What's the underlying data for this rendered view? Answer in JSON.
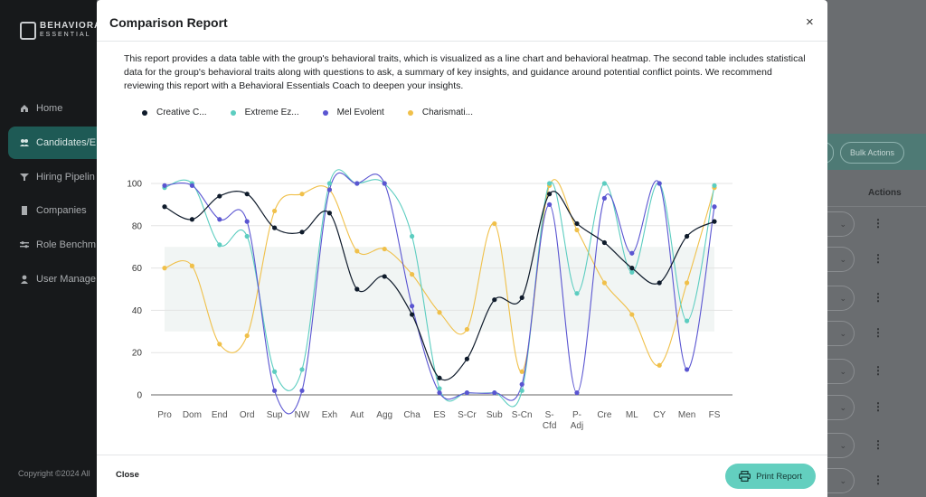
{
  "app": {
    "logo_text": "BEHAVIORA",
    "logo_sub": "ESSENTIAL",
    "sidebar": [
      {
        "label": "Home",
        "icon": "home-icon"
      },
      {
        "label": "Candidates/E",
        "icon": "users-icon"
      },
      {
        "label": "Hiring Pipelin",
        "icon": "filter-icon"
      },
      {
        "label": "Companies",
        "icon": "building-icon"
      },
      {
        "label": "Role Benchm",
        "icon": "sliders-icon"
      },
      {
        "label": "User Manage",
        "icon": "user-icon"
      }
    ],
    "copyright": "Copyright ©2024 All",
    "bulk_actions": "Bulk Actions",
    "actions_header": "Actions"
  },
  "modal": {
    "title": "Comparison Report",
    "close_icon": "×",
    "description": "This report provides a data table with the group's behavioral traits, which is visualized as a line chart and behavioral heatmap. The second table includes statistical data for the group's behavioral traits along with questions to ask, a summary of key insights, and guidance around potential conflict points. We recommend reviewing this report with a Behavioral Essentials Coach to deepen your insights.",
    "close_label": "Close",
    "print_label": "Print Report"
  },
  "chart_data": {
    "type": "line",
    "categories": [
      "Pro",
      "Dom",
      "End",
      "Ord",
      "Sup",
      "NW",
      "Exh",
      "Aut",
      "Agg",
      "Cha",
      "ES",
      "S-Cr",
      "Sub",
      "S-Cn",
      "S-Cfd",
      "P-Adj",
      "Cre",
      "ML",
      "CY",
      "Men",
      "FS"
    ],
    "ylim": [
      0,
      100
    ],
    "yticks": [
      0,
      20,
      40,
      60,
      80,
      100
    ],
    "band": [
      30,
      70
    ],
    "grid": true,
    "legend_position": "top-left",
    "series": [
      {
        "name": "Creative C...",
        "color": "#0f1b2b",
        "values": [
          89,
          83,
          94,
          95,
          79,
          77,
          86,
          50,
          56,
          38,
          8,
          17,
          45,
          46,
          95,
          81,
          72,
          60,
          53,
          75,
          82
        ]
      },
      {
        "name": "Extreme Ez...",
        "color": "#5ccdc0",
        "values": [
          98,
          100,
          71,
          75,
          11,
          12,
          100,
          100,
          100,
          75,
          3,
          1,
          1,
          2,
          100,
          48,
          100,
          58,
          100,
          35,
          99
        ]
      },
      {
        "name": "Mel Evolent",
        "color": "#5a55d1",
        "values": [
          99,
          99,
          83,
          82,
          2,
          2,
          97,
          100,
          100,
          42,
          1,
          1,
          1,
          5,
          90,
          1,
          93,
          67,
          100,
          12,
          89
        ]
      },
      {
        "name": "Charismati...",
        "color": "#f0c04a",
        "values": [
          60,
          61,
          24,
          28,
          87,
          95,
          97,
          68,
          69,
          57,
          39,
          31,
          81,
          11,
          99,
          78,
          53,
          38,
          14,
          53,
          98
        ]
      }
    ]
  }
}
